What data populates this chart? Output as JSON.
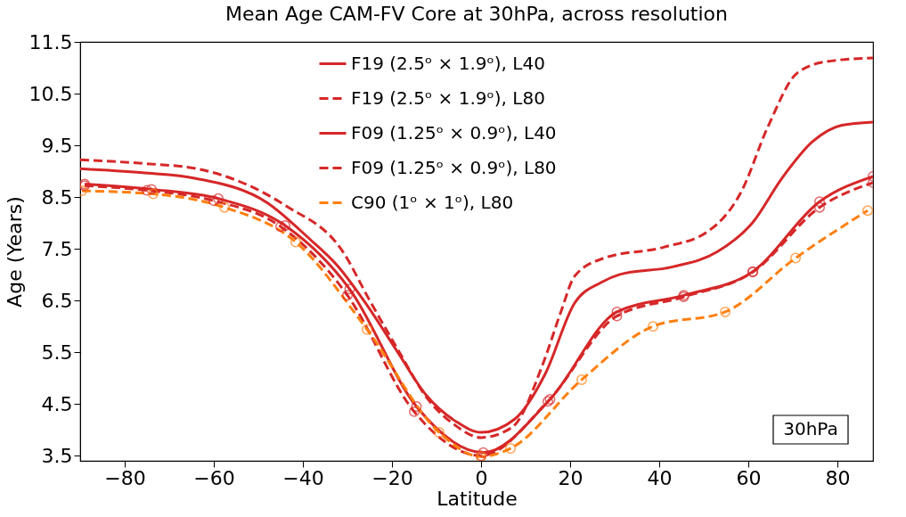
{
  "chart_data": {
    "type": "line",
    "title": "Mean Age CAM-FV Core at 30hPa, across resolution",
    "xlabel": "Latitude",
    "ylabel": "Age (Years)",
    "xlim": [
      -90,
      88
    ],
    "xticks": [
      -80,
      -60,
      -40,
      -20,
      0,
      20,
      40,
      60,
      80
    ],
    "ylim": [
      3.4,
      11.5
    ],
    "yticks": [
      3.5,
      4.5,
      5.5,
      6.5,
      7.5,
      8.5,
      9.5,
      10.5,
      11.5
    ],
    "grid": false,
    "legend": "top",
    "annotations": [
      "30hPa"
    ],
    "series": [
      {
        "name": "F19 (2.5ᵒ × 1.9ᵒ), L40",
        "color": "#d62728",
        "line_style": "solid",
        "marker": "none",
        "x": [
          -90,
          -76,
          -64,
          -48,
          -39,
          -32,
          -25.6,
          -19,
          -12.4,
          -5.6,
          0,
          7.6,
          14.4,
          21,
          27,
          31,
          43,
          53,
          61,
          67.6,
          74.4,
          81,
          88
        ],
        "values": [
          9.05,
          8.97,
          8.86,
          8.39,
          7.73,
          7.15,
          6.41,
          5.54,
          4.68,
          4.16,
          3.95,
          4.21,
          5.08,
          6.45,
          6.85,
          7.0,
          7.15,
          7.44,
          8.01,
          8.87,
          9.57,
          9.89,
          9.95
        ]
      },
      {
        "name": "F19 (2.5ᵒ × 1.9ᵒ), L80",
        "color": "#d62728",
        "line_style": "dashed",
        "marker": "none",
        "x": [
          -90,
          -76,
          -64,
          -44,
          -31,
          -25,
          -19,
          -12,
          -6,
          0,
          7,
          14,
          18,
          21,
          27.6,
          41,
          51,
          58.4,
          64.4,
          71,
          77.6,
          88
        ],
        "values": [
          9.22,
          9.15,
          9.05,
          8.34,
          7.44,
          6.5,
          5.6,
          4.6,
          4.1,
          3.85,
          4.05,
          5.3,
          6.3,
          6.97,
          7.32,
          7.53,
          7.84,
          8.6,
          9.86,
          10.9,
          11.12,
          11.19
        ]
      },
      {
        "name": "F09 (1.25ᵒ × 0.9ᵒ), L40",
        "color": "#d62728",
        "line_style": "solid",
        "marker": "circle",
        "x": [
          -89,
          -74,
          -59,
          -44,
          -29.5,
          -14.5,
          0.5,
          15.5,
          30.5,
          45.5,
          61,
          76,
          88
        ],
        "values": [
          8.75,
          8.65,
          8.47,
          7.95,
          6.72,
          4.45,
          3.56,
          4.59,
          6.28,
          6.6,
          7.06,
          8.41,
          8.9
        ]
      },
      {
        "name": "F09 (1.25ᵒ × 0.9ᵒ), L80",
        "color": "#d62728",
        "line_style": "dashed",
        "marker": "circle",
        "x": [
          -89,
          -75,
          -60,
          -45,
          -30,
          -15,
          0,
          15,
          30.5,
          45.5,
          61,
          76,
          88
        ],
        "values": [
          8.72,
          8.63,
          8.43,
          7.93,
          6.6,
          4.35,
          3.5,
          4.55,
          6.2,
          6.57,
          7.05,
          8.3,
          8.78
        ]
      },
      {
        "name": "C90 (1ᵒ × 1ᵒ), L80",
        "color": "#ff7f0e",
        "line_style": "dashed",
        "marker": "circle",
        "x": [
          -89.6,
          -73.6,
          -57.6,
          -41.6,
          -25.6,
          -9.4,
          0,
          6.6,
          22.6,
          38.6,
          54.8,
          70.6,
          86.8
        ],
        "values": [
          8.62,
          8.56,
          8.3,
          7.63,
          5.94,
          3.95,
          3.48,
          3.64,
          4.97,
          6.0,
          6.28,
          7.32,
          8.24
        ]
      }
    ]
  }
}
